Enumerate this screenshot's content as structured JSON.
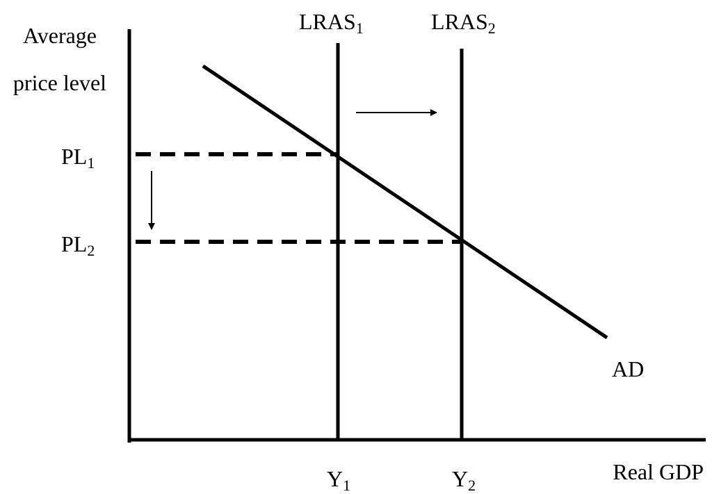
{
  "diagram": {
    "y_axis_label_line1": "Average",
    "y_axis_label_line2": "price level",
    "x_axis_label": "Real GDP",
    "pl1": {
      "base": "PL",
      "sub": "1"
    },
    "pl2": {
      "base": "PL",
      "sub": "2"
    },
    "y1": {
      "base": "Y",
      "sub": "1"
    },
    "y2": {
      "base": "Y",
      "sub": "2"
    },
    "lras1": {
      "base": "LRAS",
      "sub": "1"
    },
    "lras2": {
      "base": "LRAS",
      "sub": "2"
    },
    "ad_label": "AD"
  }
}
